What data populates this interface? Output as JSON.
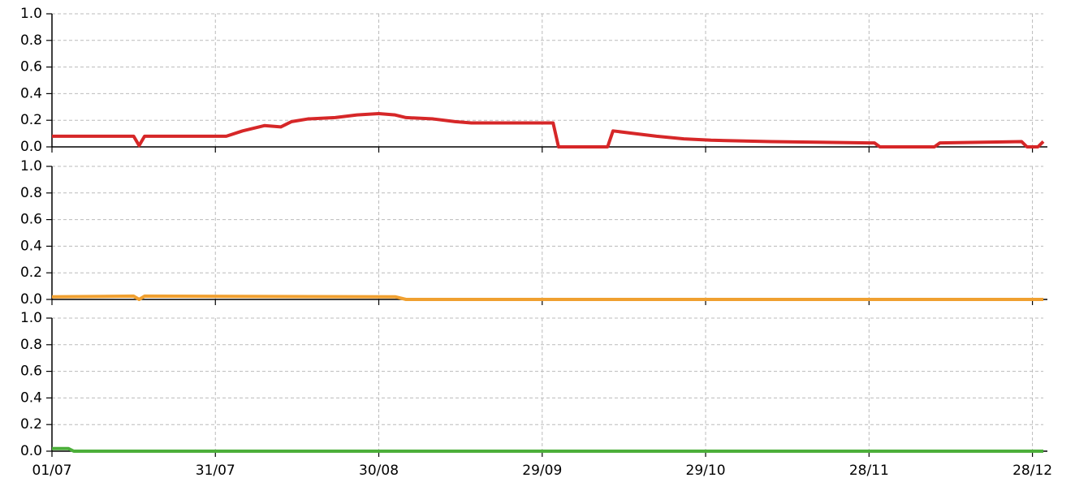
{
  "chart_data": [
    {
      "type": "line",
      "xlim": [
        "01/07",
        "30/12"
      ],
      "ylim": [
        0,
        1
      ],
      "yticks": [
        {
          "value": 0,
          "label": "0.0"
        },
        0.2,
        0.4,
        0.6,
        0.8,
        {
          "value": 1,
          "label": "1.0"
        }
      ],
      "grid": true,
      "x": [
        "01/07",
        "16/07",
        "17/07",
        "18/07",
        "31/07",
        "02/08",
        "05/08",
        "09/08",
        "12/08",
        "14/08",
        "17/08",
        "22/08",
        "26/08",
        "30/08",
        "02/09",
        "04/09",
        "09/09",
        "13/09",
        "16/09",
        "22/09",
        "29/09",
        "01/10",
        "02/10",
        "11/10",
        "12/10",
        "16/10",
        "20/10",
        "25/10",
        "30/10",
        "10/11",
        "28/11",
        "29/11",
        "30/11",
        "10/12",
        "11/12",
        "26/12",
        "27/12",
        "29/12",
        "30/12"
      ],
      "series": [
        {
          "color": "#d62728",
          "values": [
            0.08,
            0.08,
            0.01,
            0.08,
            0.08,
            0.08,
            0.12,
            0.16,
            0.15,
            0.19,
            0.21,
            0.22,
            0.24,
            0.25,
            0.24,
            0.22,
            0.21,
            0.19,
            0.18,
            0.18,
            0.18,
            0.18,
            0,
            0,
            0.12,
            0.1,
            0.08,
            0.06,
            0.05,
            0.04,
            0.03,
            0.03,
            0,
            0,
            0.03,
            0.04,
            0,
            0,
            0.04
          ]
        }
      ]
    },
    {
      "type": "line",
      "xlim": [
        "01/07",
        "30/12"
      ],
      "ylim": [
        0,
        1
      ],
      "yticks": [
        {
          "value": 0,
          "label": "0.0"
        },
        0.2,
        0.4,
        0.6,
        0.8,
        {
          "value": 1,
          "label": "1.0"
        }
      ],
      "grid": true,
      "x": [
        "01/07",
        "16/07",
        "17/07",
        "18/07",
        "02/09",
        "04/09",
        "30/12"
      ],
      "series": [
        {
          "color": "#f0a030",
          "values": [
            0.02,
            0.025,
            0,
            0.025,
            0.02,
            0,
            0
          ]
        }
      ]
    },
    {
      "type": "line",
      "xlim": [
        "01/07",
        "30/12"
      ],
      "ylim": [
        0,
        1
      ],
      "yticks": [
        {
          "value": 0,
          "label": "0.0"
        },
        0.2,
        0.4,
        0.6,
        0.8,
        {
          "value": 1,
          "label": "1.0"
        }
      ],
      "grid": true,
      "xticks": [
        "01/07",
        "31/07",
        "30/08",
        "29/09",
        "29/10",
        "28/11",
        "28/12"
      ],
      "x": [
        "01/07",
        "04/07",
        "05/07",
        "30/12"
      ],
      "series": [
        {
          "color": "#4caf3a",
          "values": [
            0.02,
            0.02,
            0,
            0
          ]
        }
      ]
    }
  ]
}
